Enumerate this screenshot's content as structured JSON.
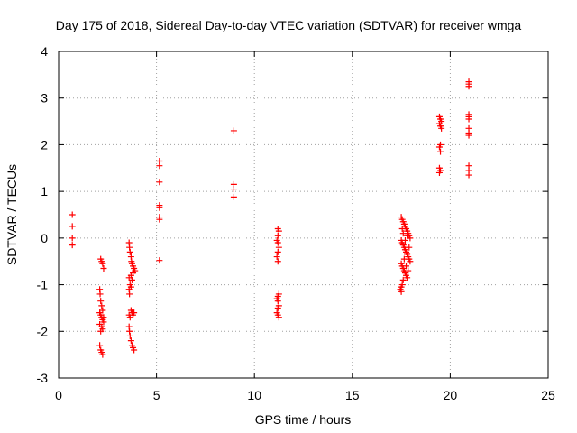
{
  "chart_data": {
    "type": "scatter",
    "title": "Day 175 of 2018, Sidereal Day-to-day VTEC variation (SDTVAR) for receiver wmga",
    "xlabel": "GPS time / hours",
    "ylabel": "SDTVAR / TECUs",
    "xlim": [
      0,
      25
    ],
    "ylim": [
      -3,
      4
    ],
    "xticks": [
      0,
      5,
      10,
      15,
      20,
      25
    ],
    "yticks": [
      -3,
      -2,
      -1,
      0,
      1,
      2,
      3,
      4
    ],
    "grid": true,
    "marker": "+",
    "series_color": "#ff0000",
    "series": [
      {
        "name": "SDTVAR",
        "points": [
          [
            0.7,
            0.5
          ],
          [
            0.7,
            0.25
          ],
          [
            0.7,
            0.0
          ],
          [
            0.7,
            -0.15
          ],
          [
            2.15,
            -0.45
          ],
          [
            2.2,
            -0.5
          ],
          [
            2.25,
            -0.55
          ],
          [
            2.3,
            -0.65
          ],
          [
            2.1,
            -1.1
          ],
          [
            2.12,
            -1.2
          ],
          [
            2.15,
            -1.35
          ],
          [
            2.2,
            -1.45
          ],
          [
            2.25,
            -1.55
          ],
          [
            2.1,
            -1.6
          ],
          [
            2.15,
            -1.65
          ],
          [
            2.2,
            -1.7
          ],
          [
            2.25,
            -1.75
          ],
          [
            2.3,
            -1.8
          ],
          [
            2.1,
            -1.85
          ],
          [
            2.2,
            -1.9
          ],
          [
            2.25,
            -1.95
          ],
          [
            2.15,
            -2.0
          ],
          [
            2.3,
            -1.7
          ],
          [
            2.1,
            -2.3
          ],
          [
            2.15,
            -2.4
          ],
          [
            2.2,
            -2.45
          ],
          [
            2.25,
            -2.5
          ],
          [
            3.6,
            -0.1
          ],
          [
            3.62,
            -0.2
          ],
          [
            3.65,
            -0.3
          ],
          [
            3.7,
            -0.4
          ],
          [
            3.72,
            -0.5
          ],
          [
            3.75,
            -0.55
          ],
          [
            3.8,
            -0.6
          ],
          [
            3.85,
            -0.65
          ],
          [
            3.9,
            -0.7
          ],
          [
            3.8,
            -0.75
          ],
          [
            3.7,
            -0.8
          ],
          [
            3.6,
            -0.85
          ],
          [
            3.75,
            -0.9
          ],
          [
            3.65,
            -1.0
          ],
          [
            3.7,
            -1.05
          ],
          [
            3.6,
            -1.1
          ],
          [
            3.62,
            -1.2
          ],
          [
            3.7,
            -1.55
          ],
          [
            3.75,
            -1.6
          ],
          [
            3.8,
            -1.65
          ],
          [
            3.6,
            -1.65
          ],
          [
            3.85,
            -1.6
          ],
          [
            3.65,
            -1.7
          ],
          [
            3.6,
            -1.9
          ],
          [
            3.62,
            -2.0
          ],
          [
            3.65,
            -2.1
          ],
          [
            3.7,
            -2.2
          ],
          [
            3.75,
            -2.3
          ],
          [
            3.8,
            -2.35
          ],
          [
            3.85,
            -2.4
          ],
          [
            5.15,
            1.65
          ],
          [
            5.15,
            1.55
          ],
          [
            5.15,
            1.2
          ],
          [
            5.15,
            0.7
          ],
          [
            5.15,
            0.65
          ],
          [
            5.15,
            0.45
          ],
          [
            5.15,
            0.4
          ],
          [
            5.15,
            -0.48
          ],
          [
            8.95,
            2.3
          ],
          [
            8.95,
            1.15
          ],
          [
            8.95,
            1.05
          ],
          [
            8.95,
            0.88
          ],
          [
            11.2,
            0.2
          ],
          [
            11.25,
            0.15
          ],
          [
            11.2,
            0.05
          ],
          [
            11.15,
            -0.05
          ],
          [
            11.2,
            -0.1
          ],
          [
            11.25,
            -0.2
          ],
          [
            11.2,
            -0.3
          ],
          [
            11.15,
            -0.4
          ],
          [
            11.2,
            -0.5
          ],
          [
            11.25,
            -1.2
          ],
          [
            11.2,
            -1.25
          ],
          [
            11.15,
            -1.3
          ],
          [
            11.2,
            -1.35
          ],
          [
            11.25,
            -1.45
          ],
          [
            11.2,
            -1.5
          ],
          [
            11.15,
            -1.6
          ],
          [
            11.2,
            -1.65
          ],
          [
            11.25,
            -1.7
          ],
          [
            17.5,
            0.45
          ],
          [
            17.55,
            0.4
          ],
          [
            17.6,
            0.35
          ],
          [
            17.65,
            0.3
          ],
          [
            17.7,
            0.25
          ],
          [
            17.75,
            0.2
          ],
          [
            17.8,
            0.15
          ],
          [
            17.85,
            0.1
          ],
          [
            17.9,
            0.05
          ],
          [
            17.95,
            0.0
          ],
          [
            17.5,
            -0.05
          ],
          [
            17.55,
            -0.1
          ],
          [
            17.6,
            -0.15
          ],
          [
            17.65,
            -0.2
          ],
          [
            17.7,
            -0.25
          ],
          [
            17.75,
            -0.3
          ],
          [
            17.8,
            -0.35
          ],
          [
            17.85,
            -0.4
          ],
          [
            17.9,
            -0.45
          ],
          [
            17.95,
            -0.5
          ],
          [
            17.5,
            -0.55
          ],
          [
            17.55,
            -0.6
          ],
          [
            17.6,
            -0.65
          ],
          [
            17.65,
            -0.7
          ],
          [
            17.7,
            -0.75
          ],
          [
            17.75,
            -0.8
          ],
          [
            17.8,
            -0.85
          ],
          [
            17.6,
            -0.9
          ],
          [
            17.55,
            -1.0
          ],
          [
            17.5,
            -1.05
          ],
          [
            17.45,
            -1.1
          ],
          [
            17.5,
            -1.15
          ],
          [
            17.6,
            0.1
          ],
          [
            17.7,
            -0.05
          ],
          [
            17.8,
            0.05
          ],
          [
            17.9,
            -0.2
          ],
          [
            17.55,
            0.2
          ],
          [
            17.65,
            -0.45
          ],
          [
            17.75,
            -0.6
          ],
          [
            17.85,
            -0.7
          ],
          [
            19.45,
            2.6
          ],
          [
            19.5,
            2.55
          ],
          [
            19.55,
            2.5
          ],
          [
            19.45,
            2.45
          ],
          [
            19.5,
            2.4
          ],
          [
            19.55,
            2.35
          ],
          [
            19.5,
            2.0
          ],
          [
            19.45,
            1.95
          ],
          [
            19.5,
            1.85
          ],
          [
            19.45,
            1.5
          ],
          [
            19.5,
            1.45
          ],
          [
            19.45,
            1.4
          ],
          [
            20.95,
            3.35
          ],
          [
            20.95,
            3.3
          ],
          [
            20.95,
            3.25
          ],
          [
            20.95,
            2.65
          ],
          [
            20.95,
            2.6
          ],
          [
            20.95,
            2.55
          ],
          [
            20.95,
            2.35
          ],
          [
            20.95,
            2.25
          ],
          [
            20.95,
            2.2
          ],
          [
            20.95,
            1.55
          ],
          [
            20.95,
            1.45
          ],
          [
            20.95,
            1.35
          ]
        ]
      }
    ]
  }
}
